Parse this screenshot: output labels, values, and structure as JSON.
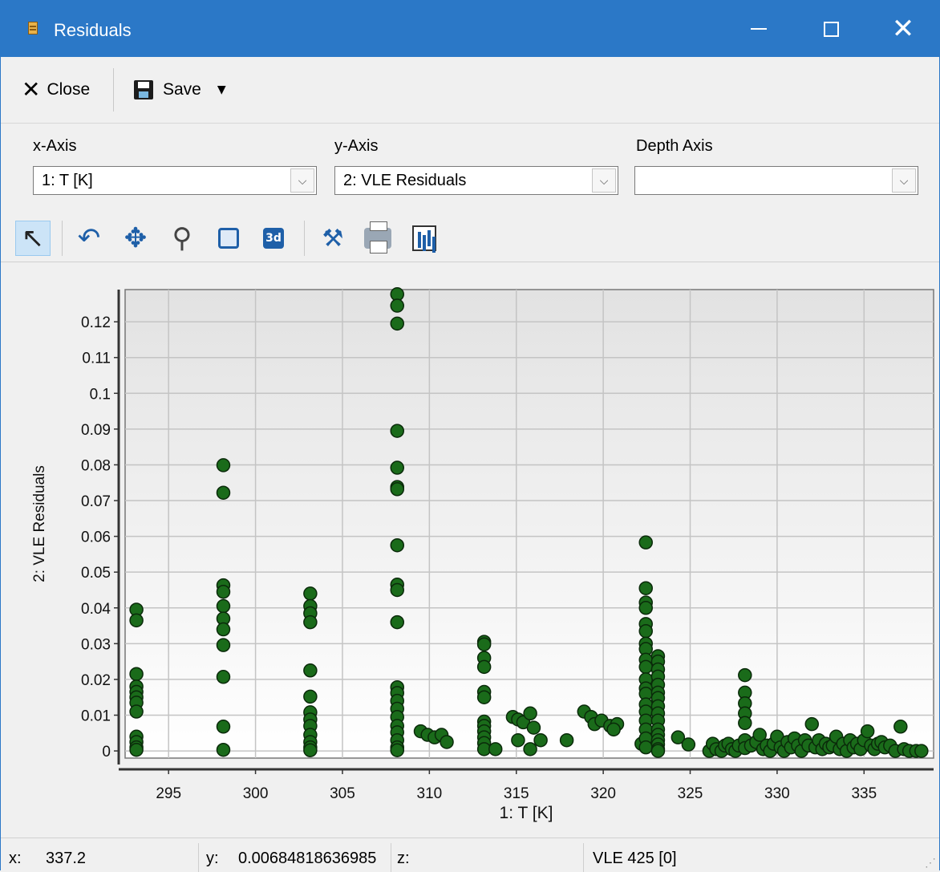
{
  "window": {
    "title": "Residuals"
  },
  "toolbar": {
    "close_label": "Close",
    "save_label": "Save"
  },
  "axes": {
    "x_axis_label": "x-Axis",
    "x_axis_value": "1: T [K]",
    "y_axis_label": "y-Axis",
    "y_axis_value": "2: VLE Residuals",
    "depth_axis_label": "Depth Axis",
    "depth_axis_value": ""
  },
  "chart_tools": [
    "pointer-icon",
    "rotate-icon",
    "pan-icon",
    "zoom-icon",
    "zoom-box-icon",
    "3d-icon",
    "properties-icon",
    "print-icon",
    "copy-chart-icon"
  ],
  "chart_data": {
    "type": "scatter",
    "xlabel": "1: T [K]",
    "ylabel": "2: VLE Residuals",
    "xlim": [
      292.5,
      339
    ],
    "ylim": [
      -0.002,
      0.129
    ],
    "xticks": [
      295,
      300,
      305,
      310,
      315,
      320,
      325,
      330,
      335
    ],
    "yticks": [
      0,
      0.01,
      0.02,
      0.03,
      0.04,
      0.05,
      0.06,
      0.07,
      0.08,
      0.09,
      0.1,
      0.11,
      0.12
    ],
    "ytick_labels": [
      "0",
      "0.01",
      "0.02",
      "0.03",
      "0.04",
      "0.05",
      "0.06",
      "0.07",
      "0.08",
      "0.09",
      "0.1",
      "0.11",
      "0.12"
    ],
    "grid": true,
    "marker_color": "#1a6b1a",
    "points": [
      [
        293.15,
        0.0395
      ],
      [
        293.15,
        0.0365
      ],
      [
        293.15,
        0.0215
      ],
      [
        293.15,
        0.018
      ],
      [
        293.15,
        0.0165
      ],
      [
        293.15,
        0.015
      ],
      [
        293.15,
        0.0135
      ],
      [
        293.15,
        0.011
      ],
      [
        293.15,
        0.004
      ],
      [
        293.15,
        0.0025
      ],
      [
        293.15,
        0.001
      ],
      [
        293.15,
        0.0003
      ],
      [
        298.15,
        0.0799
      ],
      [
        298.15,
        0.0722
      ],
      [
        298.15,
        0.0463
      ],
      [
        298.15,
        0.0445
      ],
      [
        298.15,
        0.0405
      ],
      [
        298.15,
        0.037
      ],
      [
        298.15,
        0.034
      ],
      [
        298.15,
        0.0296
      ],
      [
        298.15,
        0.0207
      ],
      [
        298.15,
        0.0068
      ],
      [
        298.15,
        0.0003
      ],
      [
        303.15,
        0.044
      ],
      [
        303.15,
        0.0405
      ],
      [
        303.15,
        0.0385
      ],
      [
        303.15,
        0.036
      ],
      [
        303.15,
        0.0225
      ],
      [
        303.15,
        0.0152
      ],
      [
        303.15,
        0.0108
      ],
      [
        303.15,
        0.0088
      ],
      [
        303.15,
        0.007
      ],
      [
        303.15,
        0.0045
      ],
      [
        303.15,
        0.0025
      ],
      [
        303.15,
        0.001
      ],
      [
        303.15,
        0.0002
      ],
      [
        308.15,
        0.1277
      ],
      [
        308.15,
        0.1245
      ],
      [
        308.15,
        0.1195
      ],
      [
        308.15,
        0.0895
      ],
      [
        308.15,
        0.0792
      ],
      [
        308.15,
        0.0738
      ],
      [
        308.15,
        0.0732
      ],
      [
        308.15,
        0.0575
      ],
      [
        308.15,
        0.0465
      ],
      [
        308.15,
        0.045
      ],
      [
        308.15,
        0.036
      ],
      [
        308.15,
        0.0178
      ],
      [
        308.15,
        0.0162
      ],
      [
        308.15,
        0.014
      ],
      [
        308.15,
        0.0118
      ],
      [
        308.15,
        0.0095
      ],
      [
        308.15,
        0.007
      ],
      [
        308.15,
        0.0052
      ],
      [
        308.15,
        0.003
      ],
      [
        308.15,
        0.001
      ],
      [
        308.15,
        0.0002
      ],
      [
        309.5,
        0.0055
      ],
      [
        309.9,
        0.0045
      ],
      [
        310.3,
        0.0038
      ],
      [
        310.7,
        0.0045
      ],
      [
        311.0,
        0.0025
      ],
      [
        313.15,
        0.0305
      ],
      [
        313.15,
        0.0298
      ],
      [
        313.15,
        0.026
      ],
      [
        313.15,
        0.0235
      ],
      [
        313.15,
        0.0165
      ],
      [
        313.15,
        0.015
      ],
      [
        313.15,
        0.0082
      ],
      [
        313.15,
        0.007
      ],
      [
        313.15,
        0.0055
      ],
      [
        313.15,
        0.0038
      ],
      [
        313.15,
        0.0022
      ],
      [
        313.15,
        0.0005
      ],
      [
        313.8,
        0.0005
      ],
      [
        314.8,
        0.0095
      ],
      [
        315.1,
        0.0088
      ],
      [
        315.4,
        0.008
      ],
      [
        315.1,
        0.003
      ],
      [
        315.8,
        0.0105
      ],
      [
        316.0,
        0.0065
      ],
      [
        315.8,
        0.0005
      ],
      [
        316.4,
        0.003
      ],
      [
        317.9,
        0.003
      ],
      [
        318.9,
        0.011
      ],
      [
        319.3,
        0.0095
      ],
      [
        319.5,
        0.0075
      ],
      [
        319.9,
        0.0085
      ],
      [
        320.4,
        0.007
      ],
      [
        320.8,
        0.0075
      ],
      [
        320.6,
        0.006
      ],
      [
        322.2,
        0.002
      ],
      [
        322.45,
        0.0583
      ],
      [
        322.45,
        0.0455
      ],
      [
        322.45,
        0.0415
      ],
      [
        322.45,
        0.04
      ],
      [
        322.45,
        0.0355
      ],
      [
        322.45,
        0.0335
      ],
      [
        322.45,
        0.03
      ],
      [
        322.45,
        0.0285
      ],
      [
        322.45,
        0.0255
      ],
      [
        322.45,
        0.0235
      ],
      [
        322.45,
        0.02
      ],
      [
        322.45,
        0.0175
      ],
      [
        322.45,
        0.016
      ],
      [
        322.45,
        0.013
      ],
      [
        322.45,
        0.011
      ],
      [
        322.45,
        0.0085
      ],
      [
        322.45,
        0.006
      ],
      [
        322.45,
        0.0035
      ],
      [
        322.45,
        0.001
      ],
      [
        323.15,
        0.0265
      ],
      [
        323.15,
        0.025
      ],
      [
        323.15,
        0.0228
      ],
      [
        323.15,
        0.0208
      ],
      [
        323.15,
        0.0185
      ],
      [
        323.15,
        0.0163
      ],
      [
        323.15,
        0.0148
      ],
      [
        323.15,
        0.0125
      ],
      [
        323.15,
        0.0105
      ],
      [
        323.15,
        0.0085
      ],
      [
        323.15,
        0.006
      ],
      [
        323.15,
        0.0045
      ],
      [
        323.15,
        0.003
      ],
      [
        323.15,
        0.0018
      ],
      [
        323.15,
        0.0005
      ],
      [
        323.15,
        0.0
      ],
      [
        324.3,
        0.0038
      ],
      [
        324.9,
        0.0018
      ],
      [
        326.1,
        0.0
      ],
      [
        326.3,
        0.002
      ],
      [
        326.5,
        0.0005
      ],
      [
        326.8,
        0.0
      ],
      [
        327.0,
        0.0015
      ],
      [
        327.2,
        0.002
      ],
      [
        327.4,
        0.0005
      ],
      [
        327.6,
        0.0
      ],
      [
        327.8,
        0.0015
      ],
      [
        328.15,
        0.0212
      ],
      [
        328.15,
        0.0163
      ],
      [
        328.15,
        0.0133
      ],
      [
        328.15,
        0.0105
      ],
      [
        328.15,
        0.0078
      ],
      [
        328.15,
        0.003
      ],
      [
        328.15,
        0.0008
      ],
      [
        328.5,
        0.0015
      ],
      [
        328.8,
        0.0025
      ],
      [
        329.0,
        0.0045
      ],
      [
        329.2,
        0.0005
      ],
      [
        329.4,
        0.0015
      ],
      [
        329.6,
        0.0
      ],
      [
        329.8,
        0.002
      ],
      [
        330.0,
        0.004
      ],
      [
        330.2,
        0.001
      ],
      [
        330.4,
        0.0
      ],
      [
        330.6,
        0.0025
      ],
      [
        330.8,
        0.001
      ],
      [
        331.0,
        0.0035
      ],
      [
        331.2,
        0.0015
      ],
      [
        331.4,
        0.0
      ],
      [
        331.6,
        0.003
      ],
      [
        331.8,
        0.0015
      ],
      [
        332.0,
        0.0075
      ],
      [
        332.2,
        0.001
      ],
      [
        332.4,
        0.003
      ],
      [
        332.6,
        0.0005
      ],
      [
        332.8,
        0.002
      ],
      [
        333.0,
        0.001
      ],
      [
        333.2,
        0.0015
      ],
      [
        333.4,
        0.004
      ],
      [
        333.6,
        0.0005
      ],
      [
        333.8,
        0.002
      ],
      [
        334.0,
        0.0
      ],
      [
        334.2,
        0.003
      ],
      [
        334.4,
        0.001
      ],
      [
        334.6,
        0.002
      ],
      [
        334.8,
        0.0005
      ],
      [
        335.0,
        0.003
      ],
      [
        335.2,
        0.0055
      ],
      [
        335.4,
        0.0015
      ],
      [
        335.6,
        0.0005
      ],
      [
        335.8,
        0.002
      ],
      [
        336.0,
        0.0025
      ],
      [
        336.2,
        0.001
      ],
      [
        336.5,
        0.0015
      ],
      [
        336.8,
        0.0
      ],
      [
        337.1,
        0.0068
      ],
      [
        337.3,
        0.0005
      ],
      [
        337.6,
        0.0
      ],
      [
        338.0,
        0.0
      ],
      [
        338.3,
        0.0
      ]
    ]
  },
  "status": {
    "x_label": "x:",
    "x_value": "337.2",
    "y_label": "y:",
    "y_value": "0.00684818636985",
    "z_label": "z:",
    "z_value": "",
    "series_info": "VLE 425 [0]"
  }
}
